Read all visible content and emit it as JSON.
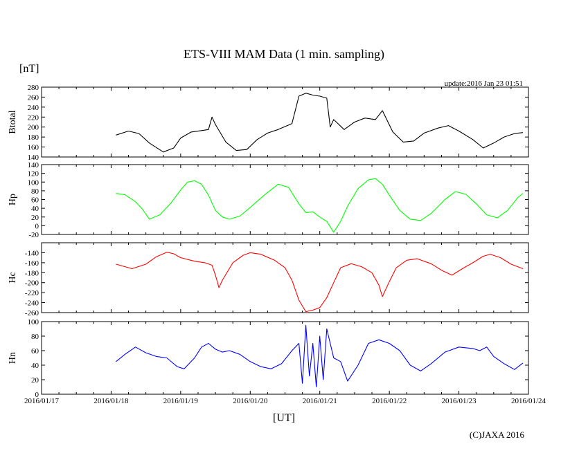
{
  "chart_data": {
    "type": "line",
    "title": "ETS-VIII MAM Data (1 min. sampling)",
    "unit_label": "[nT]",
    "update_text": "update:2016 Jan 23 01:51",
    "xlabel": "[UT]",
    "copyright": "(C)JAXA 2016",
    "x_ticks": [
      "2016/01/17",
      "2016/01/18",
      "2016/01/19",
      "2016/01/20",
      "2016/01/21",
      "2016/01/22",
      "2016/01/23",
      "2016/01/24"
    ],
    "xlim_days": [
      0,
      7
    ],
    "grid": false,
    "panels": [
      {
        "name": "Btotal",
        "color": "#000000",
        "ylim": [
          140,
          280
        ],
        "yticks": [
          140,
          160,
          180,
          200,
          220,
          240,
          260,
          280
        ],
        "points": [
          [
            1.07,
            184
          ],
          [
            1.25,
            192
          ],
          [
            1.4,
            187
          ],
          [
            1.55,
            168
          ],
          [
            1.75,
            150
          ],
          [
            1.9,
            158
          ],
          [
            2.0,
            178
          ],
          [
            2.15,
            190
          ],
          [
            2.3,
            193
          ],
          [
            2.4,
            195
          ],
          [
            2.45,
            220
          ],
          [
            2.5,
            205
          ],
          [
            2.65,
            170
          ],
          [
            2.8,
            153
          ],
          [
            2.95,
            155
          ],
          [
            3.1,
            175
          ],
          [
            3.25,
            188
          ],
          [
            3.4,
            195
          ],
          [
            3.6,
            207
          ],
          [
            3.7,
            262
          ],
          [
            3.8,
            268
          ],
          [
            3.9,
            264
          ],
          [
            4.0,
            262
          ],
          [
            4.1,
            258
          ],
          [
            4.15,
            200
          ],
          [
            4.2,
            215
          ],
          [
            4.35,
            195
          ],
          [
            4.5,
            210
          ],
          [
            4.65,
            218
          ],
          [
            4.8,
            215
          ],
          [
            4.9,
            233
          ],
          [
            5.05,
            190
          ],
          [
            5.2,
            170
          ],
          [
            5.35,
            172
          ],
          [
            5.5,
            188
          ],
          [
            5.7,
            198
          ],
          [
            5.85,
            203
          ],
          [
            6.0,
            192
          ],
          [
            6.2,
            175
          ],
          [
            6.35,
            158
          ],
          [
            6.5,
            168
          ],
          [
            6.65,
            180
          ],
          [
            6.8,
            187
          ],
          [
            6.92,
            189
          ]
        ]
      },
      {
        "name": "Hp",
        "color": "#00ff00",
        "ylim": [
          -20,
          140
        ],
        "yticks": [
          -20,
          0,
          20,
          40,
          60,
          80,
          100,
          120,
          140
        ],
        "points": [
          [
            1.07,
            74
          ],
          [
            1.2,
            71
          ],
          [
            1.35,
            55
          ],
          [
            1.45,
            38
          ],
          [
            1.55,
            15
          ],
          [
            1.7,
            25
          ],
          [
            1.85,
            50
          ],
          [
            2.0,
            82
          ],
          [
            2.1,
            100
          ],
          [
            2.2,
            103
          ],
          [
            2.3,
            95
          ],
          [
            2.4,
            70
          ],
          [
            2.5,
            35
          ],
          [
            2.6,
            20
          ],
          [
            2.7,
            15
          ],
          [
            2.85,
            22
          ],
          [
            3.0,
            42
          ],
          [
            3.2,
            70
          ],
          [
            3.4,
            95
          ],
          [
            3.55,
            88
          ],
          [
            3.7,
            50
          ],
          [
            3.8,
            30
          ],
          [
            3.9,
            32
          ],
          [
            4.0,
            20
          ],
          [
            4.1,
            10
          ],
          [
            4.2,
            -15
          ],
          [
            4.3,
            10
          ],
          [
            4.4,
            45
          ],
          [
            4.55,
            85
          ],
          [
            4.7,
            105
          ],
          [
            4.8,
            108
          ],
          [
            4.9,
            95
          ],
          [
            5.0,
            70
          ],
          [
            5.15,
            35
          ],
          [
            5.3,
            15
          ],
          [
            5.45,
            12
          ],
          [
            5.6,
            28
          ],
          [
            5.8,
            60
          ],
          [
            5.95,
            78
          ],
          [
            6.1,
            72
          ],
          [
            6.25,
            50
          ],
          [
            6.4,
            25
          ],
          [
            6.55,
            18
          ],
          [
            6.7,
            35
          ],
          [
            6.85,
            65
          ],
          [
            6.92,
            74
          ]
        ]
      },
      {
        "name": "Hc",
        "color": "#ff0000",
        "ylim": [
          -260,
          -120
        ],
        "yticks": [
          -260,
          -240,
          -220,
          -200,
          -180,
          -160,
          -140
        ],
        "points": [
          [
            1.07,
            -163
          ],
          [
            1.3,
            -172
          ],
          [
            1.5,
            -163
          ],
          [
            1.65,
            -148
          ],
          [
            1.8,
            -139
          ],
          [
            1.9,
            -142
          ],
          [
            2.0,
            -150
          ],
          [
            2.2,
            -157
          ],
          [
            2.35,
            -160
          ],
          [
            2.45,
            -165
          ],
          [
            2.5,
            -185
          ],
          [
            2.55,
            -210
          ],
          [
            2.6,
            -195
          ],
          [
            2.75,
            -160
          ],
          [
            2.9,
            -145
          ],
          [
            3.0,
            -140
          ],
          [
            3.15,
            -143
          ],
          [
            3.35,
            -155
          ],
          [
            3.5,
            -170
          ],
          [
            3.6,
            -195
          ],
          [
            3.7,
            -235
          ],
          [
            3.8,
            -258
          ],
          [
            3.9,
            -255
          ],
          [
            4.0,
            -250
          ],
          [
            4.1,
            -230
          ],
          [
            4.2,
            -200
          ],
          [
            4.3,
            -170
          ],
          [
            4.45,
            -162
          ],
          [
            4.6,
            -168
          ],
          [
            4.75,
            -180
          ],
          [
            4.85,
            -205
          ],
          [
            4.9,
            -228
          ],
          [
            5.0,
            -198
          ],
          [
            5.1,
            -170
          ],
          [
            5.25,
            -155
          ],
          [
            5.4,
            -152
          ],
          [
            5.6,
            -162
          ],
          [
            5.75,
            -175
          ],
          [
            5.9,
            -185
          ],
          [
            6.05,
            -172
          ],
          [
            6.2,
            -160
          ],
          [
            6.35,
            -147
          ],
          [
            6.45,
            -143
          ],
          [
            6.6,
            -150
          ],
          [
            6.75,
            -163
          ],
          [
            6.92,
            -172
          ]
        ]
      },
      {
        "name": "Hn",
        "color": "#0000ff",
        "ylim": [
          0,
          100
        ],
        "yticks": [
          0,
          20,
          40,
          60,
          80,
          100
        ],
        "points": [
          [
            1.07,
            45
          ],
          [
            1.2,
            55
          ],
          [
            1.35,
            65
          ],
          [
            1.5,
            57
          ],
          [
            1.65,
            52
          ],
          [
            1.8,
            50
          ],
          [
            1.95,
            38
          ],
          [
            2.05,
            35
          ],
          [
            2.2,
            50
          ],
          [
            2.3,
            65
          ],
          [
            2.4,
            70
          ],
          [
            2.5,
            62
          ],
          [
            2.6,
            58
          ],
          [
            2.7,
            60
          ],
          [
            2.85,
            55
          ],
          [
            3.0,
            45
          ],
          [
            3.15,
            38
          ],
          [
            3.3,
            35
          ],
          [
            3.45,
            42
          ],
          [
            3.6,
            60
          ],
          [
            3.7,
            70
          ],
          [
            3.75,
            15
          ],
          [
            3.8,
            95
          ],
          [
            3.85,
            25
          ],
          [
            3.9,
            70
          ],
          [
            3.95,
            10
          ],
          [
            4.0,
            80
          ],
          [
            4.05,
            20
          ],
          [
            4.1,
            90
          ],
          [
            4.2,
            50
          ],
          [
            4.3,
            45
          ],
          [
            4.4,
            18
          ],
          [
            4.55,
            40
          ],
          [
            4.7,
            70
          ],
          [
            4.85,
            75
          ],
          [
            5.0,
            70
          ],
          [
            5.15,
            60
          ],
          [
            5.3,
            40
          ],
          [
            5.45,
            32
          ],
          [
            5.6,
            42
          ],
          [
            5.8,
            58
          ],
          [
            6.0,
            65
          ],
          [
            6.2,
            63
          ],
          [
            6.3,
            60
          ],
          [
            6.4,
            65
          ],
          [
            6.5,
            52
          ],
          [
            6.65,
            42
          ],
          [
            6.8,
            34
          ],
          [
            6.92,
            43
          ]
        ]
      }
    ]
  }
}
